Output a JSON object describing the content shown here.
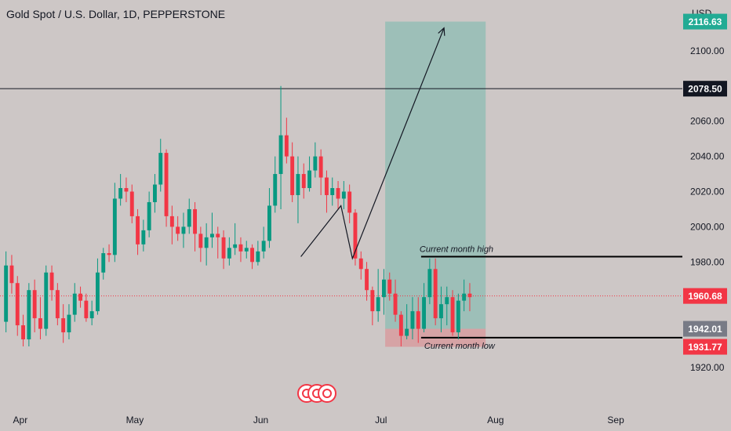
{
  "header": {
    "title": "Gold Spot / U.S. Dollar, 1D, PEPPERSTONE"
  },
  "axis": {
    "currency": "USD",
    "y_ticks": [
      1920,
      1940,
      1960,
      1980,
      2000,
      2020,
      2040,
      2060,
      2080,
      2100
    ],
    "y_tick_labels": [
      "1920.00",
      "1940.00",
      "1960.00",
      "1980.00",
      "2000.00",
      "2020.00",
      "2040.00",
      "2060.00",
      "2080.00",
      "2100.00"
    ],
    "x_ticks": [
      {
        "label": "Apr",
        "bar": 3
      },
      {
        "label": "May",
        "bar": 23
      },
      {
        "label": "Jun",
        "bar": 45
      },
      {
        "label": "Jul",
        "bar": 66
      },
      {
        "label": "Aug",
        "bar": 86
      },
      {
        "label": "Sep",
        "bar": 107
      }
    ]
  },
  "badges": [
    {
      "label": "2116.63",
      "value": 2116.63,
      "color": "#22ab94",
      "text_color": "#ffffff"
    },
    {
      "label": "2078.50",
      "value": 2078.5,
      "color": "#131722",
      "text_color": "#ffffff"
    },
    {
      "label": "1960.68",
      "value": 1960.68,
      "color": "#f23645",
      "text_color": "#ffffff"
    },
    {
      "label": "1942.01",
      "value": 1942.01,
      "color": "#787b86",
      "text_color": "#ffffff"
    },
    {
      "label": "1931.77",
      "value": 1931.77,
      "color": "#f23645",
      "text_color": "#ffffff"
    }
  ],
  "annotations": {
    "month_high_label": "Current month high",
    "month_low_label": "Current month low",
    "month_high_value": 1983,
    "month_low_value": 1937,
    "resistance_value": 2078.5,
    "current_price": 1960.68
  },
  "position": {
    "entry": 1942.01,
    "target": 2116.63,
    "stop": 1931.77,
    "start_bar": 67,
    "end_bar": 84
  },
  "projection_path": [
    {
      "bar": 52,
      "price": 1983
    },
    {
      "bar": 59,
      "price": 2012
    },
    {
      "bar": 61,
      "price": 1982
    },
    {
      "bar": 77,
      "price": 2113
    }
  ],
  "chart_data": {
    "type": "candlestick",
    "title": "Gold Spot / U.S. Dollar, 1D, PEPPERSTONE",
    "ylabel": "USD",
    "ylim": [
      1910,
      2120
    ],
    "colors": {
      "up": "#089981",
      "down": "#f23645"
    },
    "candles": [
      [
        1946,
        1978,
        1986,
        1940
      ],
      [
        1978,
        1968,
        1984,
        1962
      ],
      [
        1968,
        1944,
        1972,
        1938
      ],
      [
        1944,
        1936,
        1950,
        1932
      ],
      [
        1936,
        1964,
        1968,
        1932
      ],
      [
        1964,
        1948,
        1970,
        1940
      ],
      [
        1948,
        1942,
        1960,
        1936
      ],
      [
        1942,
        1974,
        1978,
        1938
      ],
      [
        1974,
        1964,
        1978,
        1958
      ],
      [
        1964,
        1948,
        1968,
        1944
      ],
      [
        1948,
        1940,
        1956,
        1934
      ],
      [
        1940,
        1950,
        1956,
        1936
      ],
      [
        1950,
        1962,
        1968,
        1946
      ],
      [
        1962,
        1958,
        1966,
        1954
      ],
      [
        1958,
        1948,
        1962,
        1946
      ],
      [
        1948,
        1952,
        1958,
        1944
      ],
      [
        1952,
        1974,
        1982,
        1950
      ],
      [
        1974,
        1985,
        1988,
        1970
      ],
      [
        1985,
        1984,
        1990,
        1980
      ],
      [
        1984,
        2016,
        2025,
        1980
      ],
      [
        2016,
        2022,
        2030,
        2012
      ],
      [
        2022,
        2020,
        2028,
        2014
      ],
      [
        2020,
        2006,
        2024,
        2002
      ],
      [
        2006,
        1990,
        2010,
        1984
      ],
      [
        1990,
        1998,
        2004,
        1986
      ],
      [
        1998,
        2014,
        2020,
        1994
      ],
      [
        2014,
        2024,
        2030,
        2008
      ],
      [
        2024,
        2042,
        2050,
        2020
      ],
      [
        2042,
        2006,
        2044,
        2000
      ],
      [
        2006,
        2000,
        2012,
        1990
      ],
      [
        2000,
        1996,
        2006,
        1992
      ],
      [
        1996,
        2000,
        2008,
        1988
      ],
      [
        2000,
        2010,
        2016,
        1996
      ],
      [
        2010,
        1996,
        2014,
        1986
      ],
      [
        1996,
        1988,
        2000,
        1980
      ],
      [
        1988,
        1994,
        2002,
        1978
      ],
      [
        1994,
        1996,
        2008,
        1988
      ],
      [
        1996,
        1994,
        2000,
        1982
      ],
      [
        1994,
        1982,
        1998,
        1976
      ],
      [
        1982,
        1988,
        1994,
        1978
      ],
      [
        1988,
        1990,
        2002,
        1984
      ],
      [
        1990,
        1986,
        1994,
        1980
      ],
      [
        1986,
        1988,
        1992,
        1982
      ],
      [
        1988,
        1980,
        1990,
        1976
      ],
      [
        1980,
        1986,
        1992,
        1978
      ],
      [
        1986,
        1992,
        2000,
        1982
      ],
      [
        1992,
        2012,
        2022,
        1988
      ],
      [
        2012,
        2030,
        2040,
        2008
      ],
      [
        2030,
        2052,
        2080,
        2010
      ],
      [
        2052,
        2040,
        2062,
        2036
      ],
      [
        2040,
        2018,
        2048,
        2014
      ],
      [
        2018,
        2030,
        2040,
        2002
      ],
      [
        2030,
        2022,
        2036,
        2016
      ],
      [
        2022,
        2032,
        2040,
        2020
      ],
      [
        2032,
        2040,
        2048,
        2028
      ],
      [
        2040,
        2028,
        2044,
        2018
      ],
      [
        2028,
        2018,
        2032,
        2008
      ],
      [
        2018,
        2022,
        2028,
        2012
      ],
      [
        2022,
        2016,
        2026,
        2010
      ],
      [
        2016,
        2020,
        2026,
        2010
      ],
      [
        2020,
        2008,
        2024,
        2002
      ],
      [
        2008,
        1982,
        2010,
        1978
      ],
      [
        1982,
        1976,
        1986,
        1970
      ],
      [
        1976,
        1964,
        1980,
        1958
      ],
      [
        1964,
        1952,
        1966,
        1944
      ],
      [
        1952,
        1960,
        1976,
        1946
      ],
      [
        1960,
        1970,
        1976,
        1950
      ],
      [
        1970,
        1962,
        1974,
        1958
      ],
      [
        1962,
        1950,
        1970,
        1946
      ],
      [
        1950,
        1938,
        1952,
        1932
      ],
      [
        1938,
        1942,
        1956,
        1936
      ],
      [
        1942,
        1952,
        1960,
        1936
      ],
      [
        1952,
        1942,
        1960,
        1934
      ],
      [
        1942,
        1960,
        1968,
        1940
      ],
      [
        1960,
        1976,
        1982,
        1956
      ],
      [
        1976,
        1948,
        1982,
        1944
      ],
      [
        1948,
        1956,
        1966,
        1940
      ],
      [
        1956,
        1960,
        1966,
        1944
      ],
      [
        1960,
        1940,
        1964,
        1938
      ],
      [
        1940,
        1958,
        1962,
        1936
      ],
      [
        1958,
        1962,
        1970,
        1952
      ],
      [
        1962,
        1960,
        1968,
        1952
      ]
    ],
    "horizontal_lines": [
      2078.5,
      1983,
      1937
    ],
    "legend": "none",
    "grid": false
  }
}
